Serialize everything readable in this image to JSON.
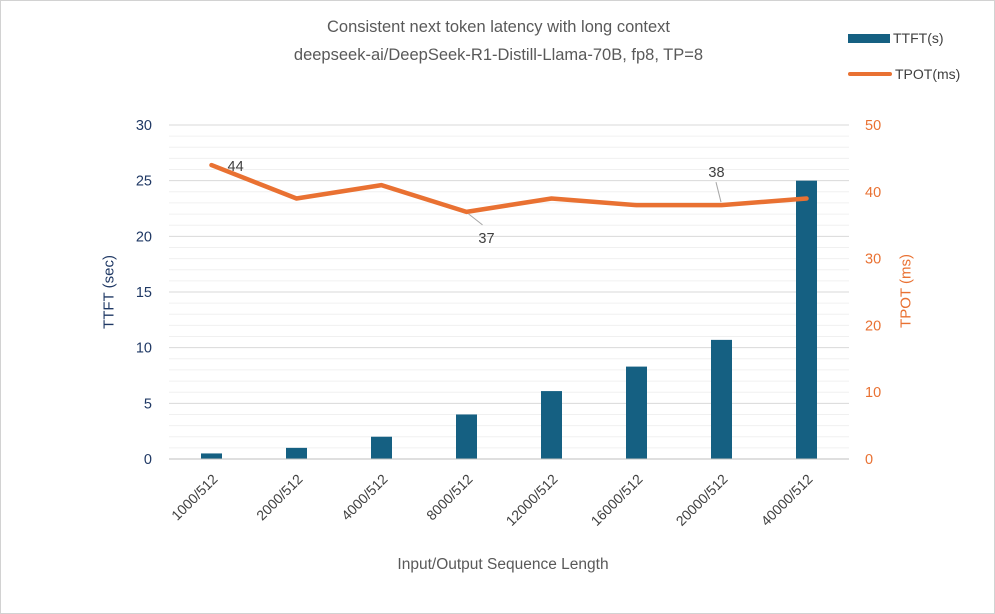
{
  "colors": {
    "bar": "#156082",
    "line": "#E97132",
    "left_axis_text": "#1F3864",
    "right_axis_text": "#E97132",
    "title_text": "#595959",
    "label_text": "#404040",
    "grid_minor": "#F0F0F0",
    "grid_major": "#D9D9D9",
    "axis_line": "#BFBFBF",
    "leader_line": "#A6A6A6"
  },
  "legend": {
    "items": [
      {
        "label": "TTFT(s)",
        "swatch": "bar"
      },
      {
        "label": "TPOT(ms)",
        "swatch": "line"
      }
    ]
  },
  "chart_data": {
    "type": "combo-bar-line",
    "title": "Consistent next token latency with long context",
    "subtitle": "deepseek-ai/DeepSeek-R1-Distill-Llama-70B, fp8, TP=8",
    "categories": [
      "1000/512",
      "2000/512",
      "4000/512",
      "8000/512",
      "12000/512",
      "16000/512",
      "20000/512",
      "40000/512"
    ],
    "series": [
      {
        "name": "TTFT(s)",
        "type": "bar",
        "axis": "left",
        "values": [
          0.5,
          1.0,
          2.0,
          4.0,
          6.1,
          8.3,
          10.7,
          25.0
        ]
      },
      {
        "name": "TPOT(ms)",
        "type": "line",
        "axis": "right",
        "values": [
          44,
          39,
          41,
          37,
          39,
          38,
          38,
          39
        ]
      }
    ],
    "annotations": [
      {
        "text": "44",
        "series": "TPOT(ms)",
        "point": 0,
        "placement": "right",
        "leader": false
      },
      {
        "text": "37",
        "series": "TPOT(ms)",
        "point": 3,
        "placement": "below-right",
        "leader": true
      },
      {
        "text": "38",
        "series": "TPOT(ms)",
        "point": 6,
        "placement": "above-left",
        "leader": true
      }
    ],
    "xlabel": "Input/Output Sequence Length",
    "ylabel_left": "TTFT (sec)",
    "y1lim": [
      0,
      30
    ],
    "y1_ticks": [
      0,
      5,
      10,
      15,
      20,
      25,
      30
    ],
    "ylabel_right": "TPOT (ms)",
    "y2lim": [
      0,
      50
    ],
    "y2_ticks": [
      0,
      10,
      20,
      30,
      40,
      50
    ],
    "grid": {
      "orientation": "horizontal",
      "minor_step": 1,
      "major_step": 5
    },
    "legend_position": "top-right"
  }
}
